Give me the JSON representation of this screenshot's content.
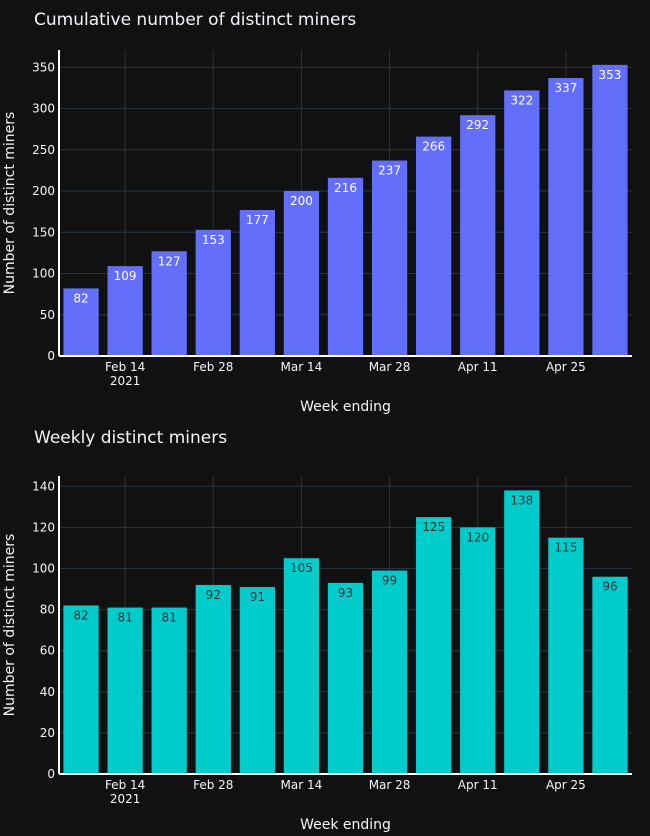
{
  "chart_data": [
    {
      "type": "bar",
      "title": "Cumulative number of distinct miners",
      "xlabel": "Week ending",
      "ylabel": "Number of distinct miners",
      "x": [
        "2021-02-08",
        "2021-02-15",
        "2021-02-22",
        "2021-03-01",
        "2021-03-08",
        "2021-03-15",
        "2021-03-22",
        "2021-03-29",
        "2021-04-05",
        "2021-04-12",
        "2021-04-19",
        "2021-04-26",
        "2021-05-03"
      ],
      "values": [
        82,
        109,
        127,
        153,
        177,
        200,
        216,
        237,
        266,
        292,
        322,
        337,
        353
      ],
      "x_ticks": [
        "Feb 14",
        "Feb 28",
        "Mar 14",
        "Mar 28",
        "Apr 11",
        "Apr 25"
      ],
      "x_tick_sublabel": "2021",
      "y_ticks": [
        0,
        50,
        100,
        150,
        200,
        250,
        300,
        350
      ],
      "ylim": [
        0,
        371
      ],
      "bar_color": "#636efa",
      "label_color": "#ffffff",
      "grid": true
    },
    {
      "type": "bar",
      "title": "Weekly distinct miners",
      "xlabel": "Week ending",
      "ylabel": "Number of distinct miners",
      "x": [
        "2021-02-08",
        "2021-02-15",
        "2021-02-22",
        "2021-03-01",
        "2021-03-08",
        "2021-03-15",
        "2021-03-22",
        "2021-03-29",
        "2021-04-05",
        "2021-04-12",
        "2021-04-19",
        "2021-04-26",
        "2021-05-03"
      ],
      "values": [
        82,
        81,
        81,
        92,
        91,
        105,
        93,
        99,
        125,
        120,
        138,
        115,
        96
      ],
      "x_ticks": [
        "Feb 14",
        "Feb 28",
        "Mar 14",
        "Mar 28",
        "Apr 11",
        "Apr 25"
      ],
      "x_tick_sublabel": "2021",
      "y_ticks": [
        0,
        20,
        40,
        60,
        80,
        100,
        120,
        140
      ],
      "ylim": [
        0,
        145
      ],
      "bar_color": "#00cccc",
      "label_color": "#333333",
      "grid": true
    }
  ]
}
